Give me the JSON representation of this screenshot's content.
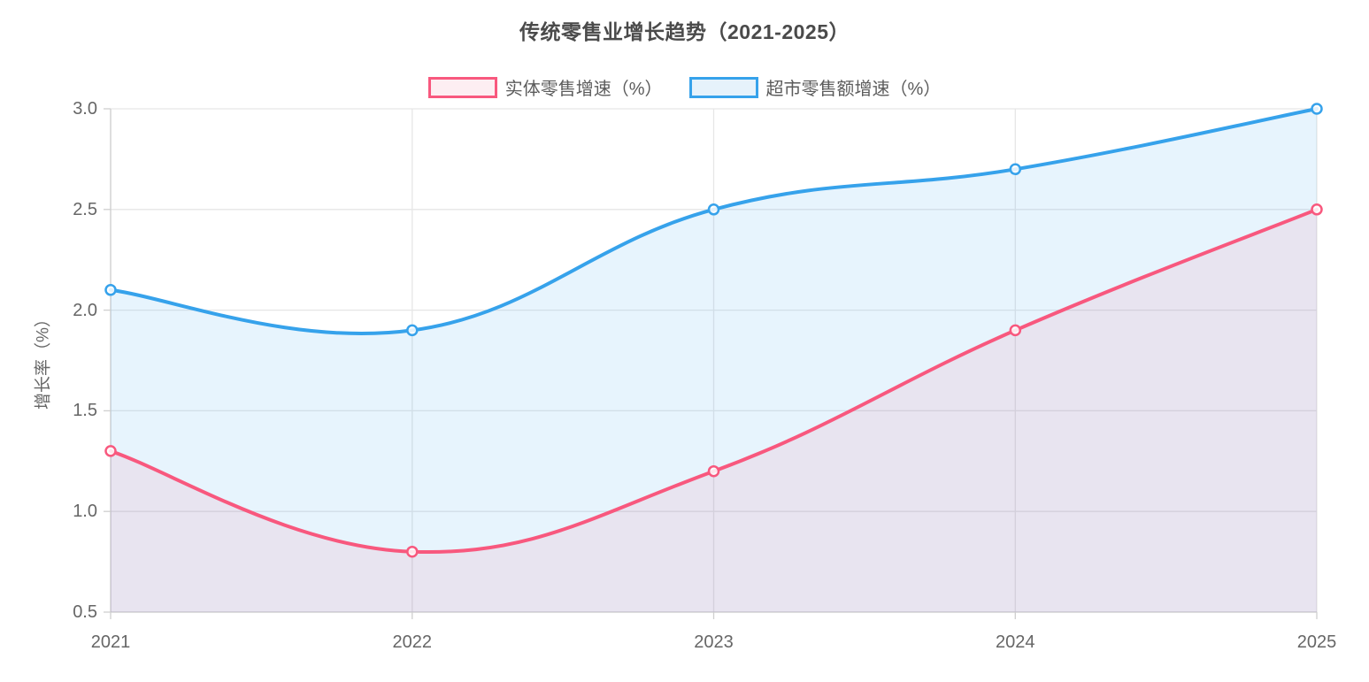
{
  "chart_data": {
    "type": "line",
    "title": "传统零售业增长趋势（2021-2025）",
    "ylabel": "增长率（%）",
    "xlabel": "",
    "categories": [
      "2021",
      "2022",
      "2023",
      "2024",
      "2025"
    ],
    "series": [
      {
        "name": "实体零售增速（%）",
        "values": [
          1.3,
          0.8,
          1.2,
          1.9,
          2.5
        ],
        "color": "#f8587e",
        "area_fill": "rgba(248, 88, 126, 0.10)",
        "legend_fill": "#fdeef2"
      },
      {
        "name": "超市零售额增速（%）",
        "values": [
          2.1,
          1.9,
          2.5,
          2.7,
          3.0
        ],
        "color": "#36a2eb",
        "area_fill": "rgba(54, 162, 235, 0.12)",
        "legend_fill": "#e6f2fb"
      }
    ],
    "ylim": [
      0.5,
      3.0
    ],
    "yticks": [
      3.0,
      2.5,
      2.0,
      1.5,
      1.0,
      0.5
    ],
    "ytick_labels": [
      "3.0",
      "2.5",
      "2.0",
      "1.5",
      "1.0",
      "0.5"
    ],
    "grid": true,
    "legend_position": "top",
    "line_smooth": true,
    "colors": {
      "grid": "#e6e6e6",
      "axis_border": "#cfcfcf",
      "tick_text": "#666666",
      "title_text": "#4a4a4a",
      "legend_text": "#5c5c5c",
      "axis_title_text": "#666666",
      "marker_fill": "#ffffff"
    }
  }
}
